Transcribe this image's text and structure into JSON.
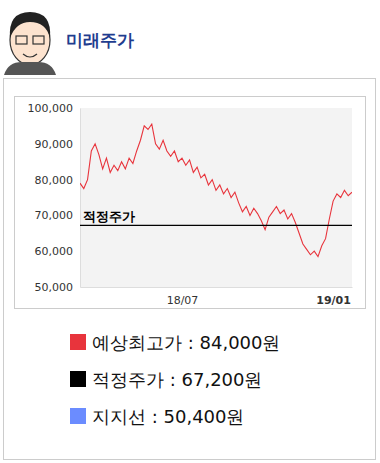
{
  "chart_data": {
    "type": "line",
    "title": "미래주가",
    "categories": [
      null,
      null,
      null,
      null,
      null,
      null,
      null,
      null,
      null,
      null,
      null,
      null,
      null,
      null,
      null,
      null,
      null,
      null,
      null,
      null,
      null,
      null,
      null,
      null,
      null,
      null,
      null,
      "18/07",
      null,
      null,
      null,
      null,
      null,
      null,
      null,
      null,
      null,
      null,
      null,
      null,
      null,
      null,
      null,
      null,
      null,
      null,
      null,
      null,
      null,
      null,
      null,
      null,
      null,
      null,
      null,
      null,
      null,
      null,
      null,
      null,
      null,
      null,
      null,
      null,
      null,
      null,
      null,
      "19/01",
      null,
      null,
      null,
      null,
      null
    ],
    "series": [
      {
        "color": "#e8343c",
        "values": [
          79000,
          77500,
          80000,
          88000,
          90000,
          87000,
          83000,
          86000,
          82000,
          84000,
          82500,
          85000,
          83000,
          86000,
          84500,
          88000,
          91000,
          95000,
          94000,
          95500,
          90000,
          88500,
          91000,
          88000,
          86500,
          88000,
          85000,
          86000,
          84000,
          85500,
          82000,
          83500,
          80500,
          81500,
          78500,
          80000,
          77000,
          78500,
          76000,
          77500,
          75000,
          76500,
          73500,
          71000,
          72500,
          70000,
          72000,
          70500,
          68500,
          66000,
          69500,
          71000,
          72500,
          70500,
          71500,
          69000,
          70500,
          68000,
          65000,
          62000,
          60500,
          59000,
          60000,
          58500,
          61500,
          63500,
          69000,
          74000,
          76000,
          75000,
          77000,
          75500,
          76500
        ]
      }
    ],
    "ylim": [
      50000,
      100000
    ],
    "yticks": [
      {
        "value": 50000,
        "label": "50,000"
      },
      {
        "value": 60000,
        "label": "60,000"
      },
      {
        "value": 70000,
        "label": "70,000"
      },
      {
        "value": 80000,
        "label": "80,000"
      },
      {
        "value": 90000,
        "label": "90,000"
      },
      {
        "value": 100000,
        "label": "100,000"
      }
    ],
    "grid": false,
    "annotations": [
      {
        "text": "적정주가",
        "y": 67200,
        "color": "#000000"
      }
    ],
    "legend_items": [
      {
        "text": "예상최고가 : 84,000원",
        "color": "#e8343c"
      },
      {
        "text": "적정주가 : 67,200원",
        "color": "#000000"
      },
      {
        "text": "지지선 : 50,400원",
        "color": "#6b8cff"
      }
    ]
  }
}
